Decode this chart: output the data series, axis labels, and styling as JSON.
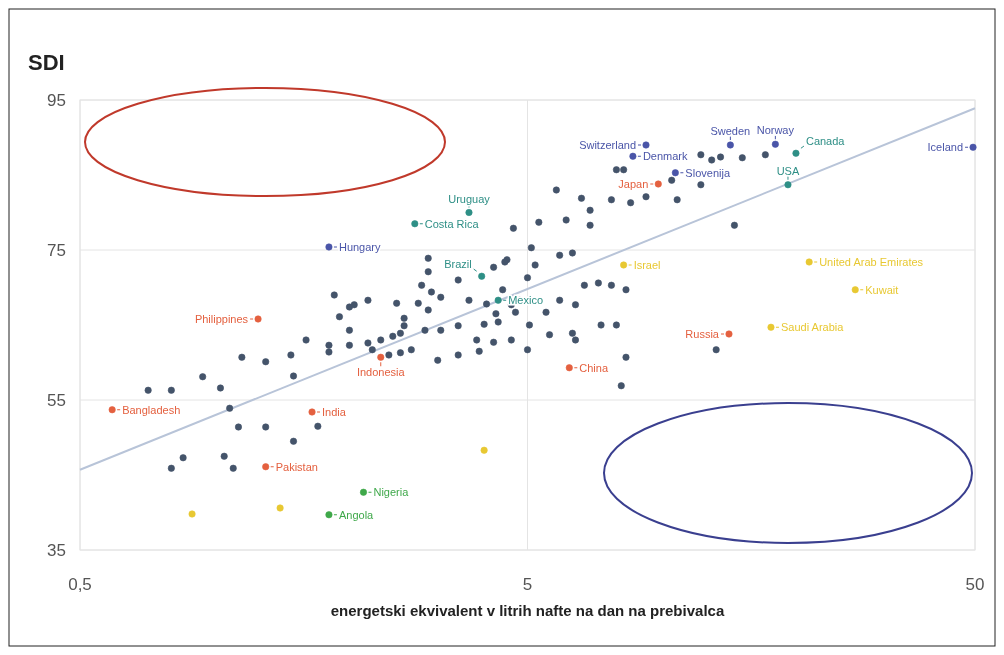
{
  "chart_data": {
    "type": "scatter",
    "title": "SDI",
    "xlabel": "energetski ekvivalent v litrih nafte na dan na prebivalca",
    "log": "x",
    "xlim": [
      0.5,
      50
    ],
    "xticks": [
      {
        "value": 0.5,
        "label": "0,5"
      },
      5,
      50
    ],
    "ylim": [
      35,
      95
    ],
    "yticks": [
      35,
      55,
      75,
      95
    ],
    "grid": true,
    "marker": "circle",
    "series": [
      {
        "type": "line",
        "marker": "none",
        "color": "#b8c4d8",
        "x": [
          0.5,
          50
        ],
        "values": [
          45.7,
          93.9
        ]
      },
      {
        "color": "#44546a",
        "x": [
          5.8,
          6.6,
          7.7,
          8.2,
          7.9,
          6.9,
          8.5,
          9.2,
          10.5,
          10.8,
          12.2,
          12.9,
          12.2,
          13.5,
          15.1,
          17,
          14.5,
          6.1,
          5.3,
          6.9,
          5.2,
          5.9,
          6.3,
          6.7,
          7.2,
          7.7,
          8.3,
          5.9,
          6.4,
          7.3,
          7.9,
          6.4,
          5,
          6.3,
          8.3,
          8.1,
          13.2,
          4.65,
          5.1,
          4.5,
          4.2,
          4.45,
          5,
          4.4,
          4.6,
          4.7,
          5.5,
          4.8,
          4.05,
          3.7,
          3.5,
          3.2,
          3.0,
          3.0,
          2.9,
          3.05,
          3.0,
          2.85,
          2.95,
          3.2,
          3.5,
          4.0,
          4.25,
          2.55,
          2.65,
          2.65,
          2.6,
          2.5,
          2.35,
          2.2,
          2.05,
          2.0,
          2.0,
          1.9,
          1.85,
          2.0,
          2.2,
          2.25,
          2.45,
          2.6,
          2.75,
          3.15,
          3.5,
          3.85,
          3.9,
          4.2,
          4.3,
          4.6,
          5.05,
          5.6,
          1.8,
          1.6,
          1.48,
          1.3,
          1.15,
          0.94,
          0.71,
          0.8,
          1.03,
          1.08,
          1.13,
          1.3,
          1.5,
          1.7,
          1.05,
          0.85,
          0.8,
          1.1,
          1.8,
          1.5
        ],
        "values": [
          83.0,
          81.9,
          81.7,
          85.7,
          85.7,
          80.3,
          81.3,
          82.1,
          84.3,
          81.7,
          83.7,
          87,
          87.7,
          87.4,
          87.3,
          87.7,
          78.3,
          79,
          78.7,
          78.3,
          73,
          74.3,
          74.6,
          70.3,
          70.6,
          70.3,
          69.7,
          68.3,
          67.7,
          65,
          65,
          63,
          61.7,
          63.9,
          60.7,
          56.9,
          61.7,
          77.9,
          75.3,
          73.7,
          72.7,
          73.4,
          71.3,
          69.7,
          67.7,
          66.7,
          66.7,
          68.3,
          67.8,
          68.3,
          71,
          68.7,
          73.9,
          72.1,
          70.3,
          69.4,
          67,
          67.9,
          64.3,
          64.3,
          64.9,
          65.1,
          66.5,
          67.9,
          65.9,
          64.9,
          63.9,
          63.5,
          63,
          68.3,
          67.7,
          67.4,
          64.3,
          66.1,
          69,
          62.3,
          62.6,
          61.7,
          61,
          61.3,
          61.7,
          60.3,
          61,
          63,
          61.5,
          62.7,
          65.4,
          63,
          65,
          63.7,
          62.3,
          63,
          61,
          60.1,
          60.7,
          58.1,
          56.3,
          56.3,
          56.6,
          53.9,
          51.4,
          51.4,
          49.5,
          51.5,
          47.5,
          47.3,
          45.9,
          45.9,
          61.4,
          58.2
        ]
      },
      {
        "color": "#4a55a8",
        "x": [
          1.8,
          8.6,
          9.2,
          14.2,
          17.9,
          49.5,
          10.7
        ],
        "values": [
          75.4,
          87.5,
          89,
          89,
          89.1,
          88.7,
          85.3
        ]
      },
      {
        "color": "#2e8f86",
        "x": [
          2.8,
          3.7,
          3.95,
          4.3,
          19.9,
          19.1
        ],
        "values": [
          78.5,
          80,
          71.5,
          68.3,
          87.9,
          83.7
        ]
      },
      {
        "color": "#e4603f",
        "x": [
          1.25,
          2.35,
          0.59,
          1.65,
          1.3,
          6.2,
          14.1,
          9.8
        ],
        "values": [
          65.8,
          60.7,
          53.7,
          53.4,
          46.1,
          59.3,
          63.8,
          83.8
        ]
      },
      {
        "color": "#3fa84a",
        "x": [
          2.15,
          1.8
        ],
        "values": [
          42.7,
          39.7
        ]
      },
      {
        "color": "#e8c832",
        "x": [
          0.89,
          1.4,
          4.0,
          8.2,
          21.3,
          27,
          17.5
        ],
        "values": [
          39.8,
          40.6,
          48.3,
          73,
          73.4,
          69.7,
          64.7
        ]
      }
    ],
    "annotations": [
      {
        "text": "Hungary",
        "x": 1.8,
        "y": 75.4
      },
      {
        "text": "Denmark",
        "x": 8.6,
        "y": 87.5
      },
      {
        "text": "Switzerland",
        "x": 9.2,
        "y": 89
      },
      {
        "text": "Sweden",
        "x": 14.2,
        "y": 89
      },
      {
        "text": "Norway",
        "x": 17.9,
        "y": 89.1
      },
      {
        "text": "Iceland",
        "x": 49.5,
        "y": 88.7
      },
      {
        "text": "Slovenija",
        "x": 10.7,
        "y": 85.3
      },
      {
        "text": "Costa Rica",
        "x": 2.8,
        "y": 78.5
      },
      {
        "text": "Uruguay",
        "x": 3.7,
        "y": 80
      },
      {
        "text": "Brazil",
        "x": 3.95,
        "y": 71.5
      },
      {
        "text": "Mexico",
        "x": 4.3,
        "y": 68.3
      },
      {
        "text": "Canada",
        "x": 19.9,
        "y": 87.9
      },
      {
        "text": "USA",
        "x": 19.1,
        "y": 83.7
      },
      {
        "text": "Philippines",
        "x": 1.25,
        "y": 65.8
      },
      {
        "text": "Indonesia",
        "x": 2.35,
        "y": 60.7
      },
      {
        "text": "Bangladesh",
        "x": 0.59,
        "y": 53.7
      },
      {
        "text": "India",
        "x": 1.65,
        "y": 53.4
      },
      {
        "text": "Pakistan",
        "x": 1.3,
        "y": 46.1
      },
      {
        "text": "China",
        "x": 6.2,
        "y": 59.3
      },
      {
        "text": "Russia",
        "x": 14.1,
        "y": 63.8
      },
      {
        "text": "Japan",
        "x": 9.8,
        "y": 83.8
      },
      {
        "text": "Nigeria",
        "x": 2.15,
        "y": 42.7
      },
      {
        "text": "Angola",
        "x": 1.8,
        "y": 39.7
      },
      {
        "text": "Israel",
        "x": 8.2,
        "y": 73
      },
      {
        "text": "United Arab Emirates",
        "x": 21.3,
        "y": 73.4
      },
      {
        "text": "Kuwait",
        "x": 27,
        "y": 69.7
      },
      {
        "text": "Saudi Arabia",
        "x": 17.5,
        "y": 64.7
      }
    ]
  }
}
